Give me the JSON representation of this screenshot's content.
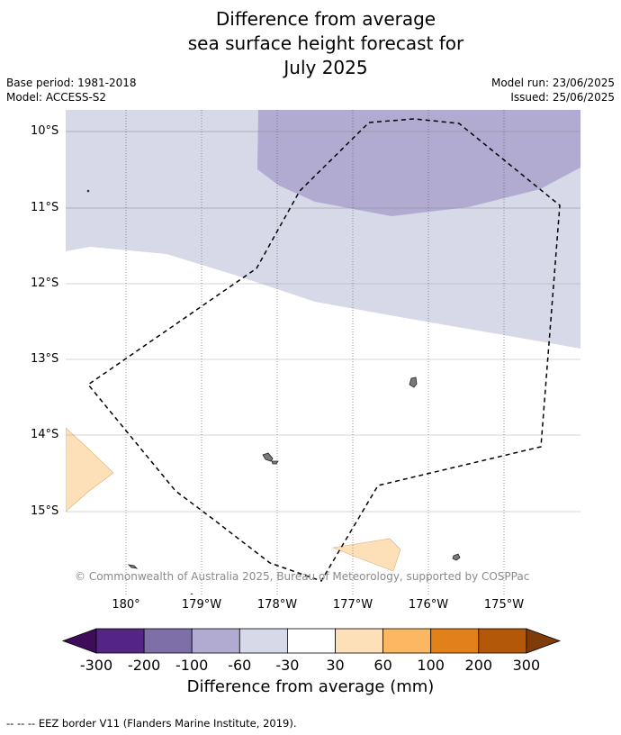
{
  "title": {
    "line1": "Difference from average",
    "line2": "sea surface height forecast for",
    "line3": "July 2025"
  },
  "meta": {
    "base_period": "Base period: 1981-2018",
    "model": "Model: ACCESS-S2",
    "model_run": "Model run: 23/06/2025",
    "issued": "Issued: 25/06/2025"
  },
  "map": {
    "lat_labels": [
      "10°S",
      "11°S",
      "12°S",
      "13°S",
      "14°S",
      "15°S"
    ],
    "lon_labels": [
      "180°",
      "179°W",
      "178°W",
      "177°W",
      "176°W",
      "175°W"
    ],
    "copyright": "© Commonwealth of Australia 2025, Bureau of Meteorology, supported by COSPPac",
    "anomaly_colors": {
      "-60_to_-30": "#d7d8e8",
      "-100_to_-60": "#b1abd2",
      "30_to_60": "#fde0b7"
    },
    "border_style": "dashed"
  },
  "colorbar": {
    "ticks": [
      "-300",
      "-200",
      "-100",
      "-60",
      "-30",
      "30",
      "60",
      "100",
      "200",
      "300"
    ],
    "colors": [
      "#3f0c5b",
      "#552585",
      "#7e6fa9",
      "#b1abd2",
      "#d7d8e8",
      "#ffffff",
      "#fde0b7",
      "#fbb761",
      "#e2811a",
      "#b35808",
      "#7f3b08"
    ],
    "label": "Difference from average (mm)"
  },
  "footnote": "--  --  -- EEZ border V11 (Flanders Marine Institute, 2019)."
}
